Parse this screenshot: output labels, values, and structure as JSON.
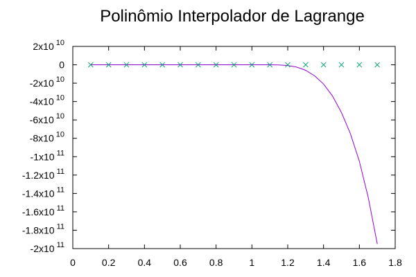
{
  "chart_data": {
    "type": "line",
    "title": "Polinômio Interpolador de Lagrange",
    "xlabel": "",
    "ylabel": "",
    "xlim": [
      0,
      1.8
    ],
    "ylim": [
      -200000000000,
      20000000000
    ],
    "grid": false,
    "legend": "none",
    "x_ticks": [
      {
        "value": 0,
        "label": "0"
      },
      {
        "value": 0.2,
        "label": "0.2"
      },
      {
        "value": 0.4,
        "label": "0.4"
      },
      {
        "value": 0.6,
        "label": "0.6"
      },
      {
        "value": 0.8,
        "label": "0.8"
      },
      {
        "value": 1.0,
        "label": "1"
      },
      {
        "value": 1.2,
        "label": "1.2"
      },
      {
        "value": 1.4,
        "label": "1.4"
      },
      {
        "value": 1.6,
        "label": "1.6"
      },
      {
        "value": 1.8,
        "label": "1.8"
      }
    ],
    "y_ticks": [
      {
        "value": 20000000000,
        "mant": "2x10",
        "exp": "10"
      },
      {
        "value": 0,
        "mant": "0",
        "exp": ""
      },
      {
        "value": -20000000000,
        "mant": "-2x10",
        "exp": "10"
      },
      {
        "value": -40000000000,
        "mant": "-4x10",
        "exp": "10"
      },
      {
        "value": -60000000000,
        "mant": "-6x10",
        "exp": "10"
      },
      {
        "value": -80000000000,
        "mant": "-8x10",
        "exp": "10"
      },
      {
        "value": -100000000000,
        "mant": "-1x10",
        "exp": "11"
      },
      {
        "value": -120000000000,
        "mant": "-1.2x10",
        "exp": "11"
      },
      {
        "value": -140000000000,
        "mant": "-1.4x10",
        "exp": "11"
      },
      {
        "value": -160000000000,
        "mant": "-1.6x10",
        "exp": "11"
      },
      {
        "value": -180000000000,
        "mant": "-1.8x10",
        "exp": "11"
      },
      {
        "value": -200000000000,
        "mant": "-2x10",
        "exp": "11"
      }
    ],
    "series": [
      {
        "kind": "points",
        "marker": "x",
        "color": "#009e73",
        "x": [
          0.1,
          0.2,
          0.3,
          0.4,
          0.5,
          0.6,
          0.7,
          0.8,
          0.9,
          1.0,
          1.1,
          1.2,
          1.3,
          1.4,
          1.5,
          1.6,
          1.7
        ],
        "y": [
          0,
          0,
          0,
          0,
          0,
          0,
          0,
          0,
          0,
          0,
          0,
          0,
          0,
          0,
          0,
          0,
          0
        ]
      },
      {
        "kind": "line",
        "color": "#9400d3",
        "x": [
          0.1,
          0.2,
          0.3,
          0.4,
          0.5,
          0.6,
          0.7,
          0.8,
          0.9,
          1.0,
          1.1,
          1.15,
          1.2,
          1.25,
          1.3,
          1.35,
          1.4,
          1.45,
          1.5,
          1.55,
          1.6,
          1.65,
          1.7
        ],
        "y": [
          0,
          0,
          0,
          0,
          0,
          0,
          0,
          0,
          0,
          0,
          0,
          -200000000,
          -800000000,
          -2500000000,
          -6000000000,
          -12000000000,
          -21000000000,
          -34000000000,
          -52000000000,
          -75000000000,
          -105000000000,
          -145000000000,
          -195000000000
        ]
      }
    ]
  }
}
